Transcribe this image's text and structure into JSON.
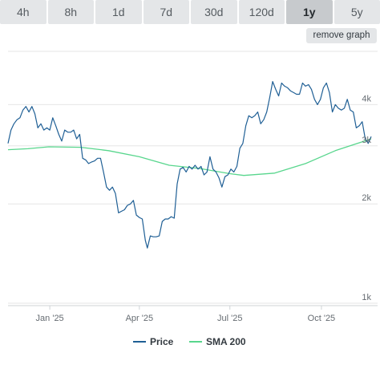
{
  "range_tabs": [
    "4h",
    "8h",
    "1d",
    "7d",
    "30d",
    "120d",
    "1y",
    "5y"
  ],
  "active_tab": "1y",
  "remove_graph_label": "remove graph",
  "colors": {
    "price": "#1f5f95",
    "sma": "#58d68d",
    "grid": "#e6e6e6",
    "tab_bg": "#e4e6e8",
    "tab_active_bg": "#c7cacd"
  },
  "chart_data": {
    "type": "line",
    "title": "",
    "xlabel": "",
    "ylabel": "",
    "y_scale": "log",
    "ylim": [
      1000,
      6000
    ],
    "xlim": [
      "2024-11-20",
      "2025-11-20"
    ],
    "grid": "horizontal",
    "legend_position": "bottom-center",
    "y_ticks": [
      {
        "value": 1000,
        "label": "1k"
      },
      {
        "value": 2000,
        "label": "2k"
      },
      {
        "value": 3000,
        "label": "3k"
      },
      {
        "value": 4000,
        "label": "4k"
      }
    ],
    "x_ticks": [
      {
        "date": "2025-01-01",
        "label": "Jan '25"
      },
      {
        "date": "2025-04-01",
        "label": "Apr '25"
      },
      {
        "date": "2025-07-01",
        "label": "Jul '25"
      },
      {
        "date": "2025-10-01",
        "label": "Oct '25"
      }
    ],
    "series": [
      {
        "name": "Price",
        "color": "#1f5f95",
        "points": [
          [
            "2024-11-20",
            3050
          ],
          [
            "2024-11-23",
            3350
          ],
          [
            "2024-11-26",
            3500
          ],
          [
            "2024-11-29",
            3600
          ],
          [
            "2024-12-02",
            3650
          ],
          [
            "2024-12-05",
            3850
          ],
          [
            "2024-12-08",
            3950
          ],
          [
            "2024-12-11",
            3800
          ],
          [
            "2024-12-14",
            3950
          ],
          [
            "2024-12-17",
            3750
          ],
          [
            "2024-12-20",
            3400
          ],
          [
            "2024-12-23",
            3500
          ],
          [
            "2024-12-26",
            3350
          ],
          [
            "2024-12-29",
            3400
          ],
          [
            "2025-01-01",
            3350
          ],
          [
            "2025-01-04",
            3650
          ],
          [
            "2025-01-07",
            3450
          ],
          [
            "2025-01-10",
            3250
          ],
          [
            "2025-01-13",
            3100
          ],
          [
            "2025-01-16",
            3350
          ],
          [
            "2025-01-19",
            3300
          ],
          [
            "2025-01-22",
            3300
          ],
          [
            "2025-01-25",
            3350
          ],
          [
            "2025-01-28",
            3150
          ],
          [
            "2025-01-31",
            3250
          ],
          [
            "2025-02-03",
            2750
          ],
          [
            "2025-02-06",
            2720
          ],
          [
            "2025-02-09",
            2650
          ],
          [
            "2025-02-12",
            2680
          ],
          [
            "2025-02-15",
            2700
          ],
          [
            "2025-02-18",
            2750
          ],
          [
            "2025-02-21",
            2750
          ],
          [
            "2025-02-24",
            2500
          ],
          [
            "2025-02-27",
            2250
          ],
          [
            "2025-03-02",
            2200
          ],
          [
            "2025-03-05",
            2250
          ],
          [
            "2025-03-08",
            2150
          ],
          [
            "2025-03-11",
            1880
          ],
          [
            "2025-03-14",
            1900
          ],
          [
            "2025-03-17",
            1920
          ],
          [
            "2025-03-20",
            1980
          ],
          [
            "2025-03-23",
            2000
          ],
          [
            "2025-03-26",
            2050
          ],
          [
            "2025-03-29",
            1850
          ],
          [
            "2025-04-01",
            1820
          ],
          [
            "2025-04-04",
            1800
          ],
          [
            "2025-04-07",
            1550
          ],
          [
            "2025-04-09",
            1470
          ],
          [
            "2025-04-12",
            1600
          ],
          [
            "2025-04-15",
            1590
          ],
          [
            "2025-04-18",
            1590
          ],
          [
            "2025-04-21",
            1600
          ],
          [
            "2025-04-24",
            1770
          ],
          [
            "2025-04-27",
            1800
          ],
          [
            "2025-04-30",
            1800
          ],
          [
            "2025-05-03",
            1830
          ],
          [
            "2025-05-06",
            1810
          ],
          [
            "2025-05-09",
            2300
          ],
          [
            "2025-05-12",
            2550
          ],
          [
            "2025-05-15",
            2580
          ],
          [
            "2025-05-18",
            2500
          ],
          [
            "2025-05-21",
            2600
          ],
          [
            "2025-05-24",
            2550
          ],
          [
            "2025-05-27",
            2620
          ],
          [
            "2025-05-30",
            2550
          ],
          [
            "2025-06-02",
            2600
          ],
          [
            "2025-06-05",
            2450
          ],
          [
            "2025-06-08",
            2500
          ],
          [
            "2025-06-11",
            2780
          ],
          [
            "2025-06-14",
            2550
          ],
          [
            "2025-06-17",
            2500
          ],
          [
            "2025-06-20",
            2400
          ],
          [
            "2025-06-23",
            2250
          ],
          [
            "2025-06-26",
            2420
          ],
          [
            "2025-06-29",
            2450
          ],
          [
            "2025-07-02",
            2550
          ],
          [
            "2025-07-05",
            2500
          ],
          [
            "2025-07-08",
            2600
          ],
          [
            "2025-07-11",
            2950
          ],
          [
            "2025-07-14",
            3050
          ],
          [
            "2025-07-17",
            3450
          ],
          [
            "2025-07-20",
            3700
          ],
          [
            "2025-07-23",
            3650
          ],
          [
            "2025-07-26",
            3700
          ],
          [
            "2025-07-29",
            3800
          ],
          [
            "2025-08-01",
            3500
          ],
          [
            "2025-08-04",
            3600
          ],
          [
            "2025-08-07",
            3800
          ],
          [
            "2025-08-10",
            4200
          ],
          [
            "2025-08-13",
            4700
          ],
          [
            "2025-08-16",
            4450
          ],
          [
            "2025-08-19",
            4250
          ],
          [
            "2025-08-22",
            4650
          ],
          [
            "2025-08-25",
            4550
          ],
          [
            "2025-08-28",
            4500
          ],
          [
            "2025-08-31",
            4400
          ],
          [
            "2025-09-03",
            4350
          ],
          [
            "2025-09-06",
            4300
          ],
          [
            "2025-09-09",
            4300
          ],
          [
            "2025-09-12",
            4650
          ],
          [
            "2025-09-15",
            4550
          ],
          [
            "2025-09-18",
            4600
          ],
          [
            "2025-09-21",
            4450
          ],
          [
            "2025-09-24",
            4150
          ],
          [
            "2025-09-27",
            4000
          ],
          [
            "2025-09-30",
            4150
          ],
          [
            "2025-10-03",
            4500
          ],
          [
            "2025-10-06",
            4650
          ],
          [
            "2025-10-09",
            4350
          ],
          [
            "2025-10-12",
            3800
          ],
          [
            "2025-10-15",
            4000
          ],
          [
            "2025-10-18",
            3900
          ],
          [
            "2025-10-21",
            3850
          ],
          [
            "2025-10-24",
            3900
          ],
          [
            "2025-10-27",
            4150
          ],
          [
            "2025-10-30",
            3850
          ],
          [
            "2025-11-02",
            3800
          ],
          [
            "2025-11-05",
            3400
          ],
          [
            "2025-11-08",
            3450
          ],
          [
            "2025-11-11",
            3550
          ],
          [
            "2025-11-14",
            3150
          ],
          [
            "2025-11-17",
            3050
          ],
          [
            "2025-11-20",
            3200
          ]
        ]
      },
      {
        "name": "SMA 200",
        "color": "#58d68d",
        "points": [
          [
            "2024-11-20",
            2920
          ],
          [
            "2024-12-10",
            2940
          ],
          [
            "2024-12-31",
            2980
          ],
          [
            "2025-02-01",
            2970
          ],
          [
            "2025-03-01",
            2900
          ],
          [
            "2025-04-01",
            2780
          ],
          [
            "2025-05-01",
            2620
          ],
          [
            "2025-06-01",
            2560
          ],
          [
            "2025-07-01",
            2470
          ],
          [
            "2025-07-15",
            2440
          ],
          [
            "2025-08-15",
            2480
          ],
          [
            "2025-09-15",
            2650
          ],
          [
            "2025-10-15",
            2900
          ],
          [
            "2025-11-20",
            3150
          ]
        ]
      }
    ]
  }
}
